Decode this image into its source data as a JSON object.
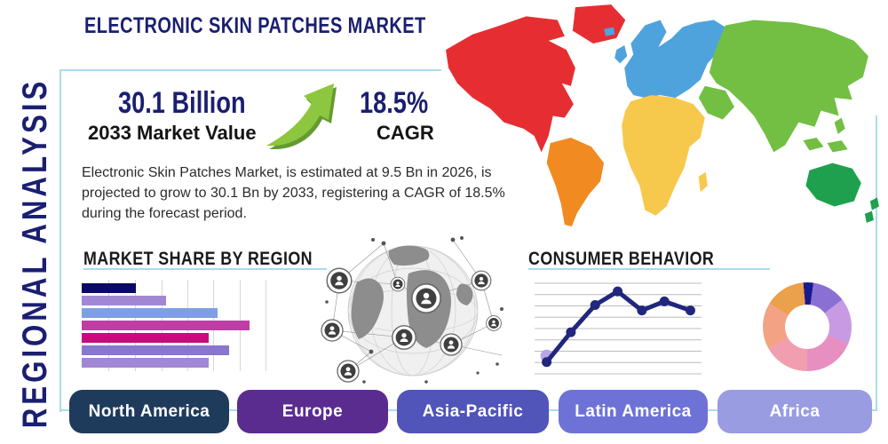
{
  "page": {
    "title": "ELECTRONIC SKIN PATCHES MARKET",
    "side_label": "REGIONAL ANALYSIS"
  },
  "stats": {
    "market_value": "30.1 Billion",
    "market_value_label": "2033 Market Value",
    "cagr_value": "18.5%",
    "cagr_label": "CAGR",
    "description": "Electronic Skin Patches Market, is estimated at 9.5 Bn in 2026, is projected to grow to 30.1 Bn by 2033, registering a CAGR of 18.5% during the forecast period."
  },
  "ui": {
    "panel_border_color": "#abdbee",
    "underline_color": "#a9d9ee",
    "navy": "#1a1f71",
    "arrow_green": "#8dc63f",
    "arrow_green_dark": "#649a31"
  },
  "world_map": {
    "north_america": "#e62e32",
    "south_america": "#f08a21",
    "europe": "#4fa3dd",
    "asia": "#72bf44",
    "africa": "#f6c84c",
    "australia": "#1fa04e"
  },
  "region_buttons": [
    {
      "label": "North America",
      "color": "#1f3b5c"
    },
    {
      "label": "Europe",
      "color": "#5b2c90"
    },
    {
      "label": "Asia-Pacific",
      "color": "#5154b8"
    },
    {
      "label": "Latin America",
      "color": "#6e72d6"
    },
    {
      "label": "Africa",
      "color": "#999ce1"
    }
  ],
  "chart_data": [
    {
      "type": "bar",
      "title": "MARKET SHARE BY REGION",
      "orientation": "horizontal",
      "note": "no axis labels visible; values estimated as % of plot width",
      "values_pct": [
        29,
        45,
        73,
        90,
        68,
        79,
        68
      ],
      "bar_colors": [
        "#0a0a66",
        "#a287d4",
        "#7e9fe3",
        "#bf3da5",
        "#c90a7c",
        "#8876cf",
        "#a287d4"
      ],
      "gridlines_pct": [
        14.3,
        28.6,
        42.9,
        56.7,
        70.5,
        84.8,
        98.6
      ],
      "grid": "vertical"
    },
    {
      "type": "line",
      "title": "CONSUMER BEHAVIOR",
      "note": "no axis labels visible; points estimated on 0-100 scale",
      "x_pct": [
        8,
        22,
        36,
        49,
        63,
        76,
        91
      ],
      "y_pct": [
        13,
        46,
        76,
        91,
        70,
        80,
        70
      ],
      "color": "#20277d",
      "start_marker_color": "#b7a6e3",
      "gridline_count": 9,
      "grid": "horizontal"
    },
    {
      "type": "pie",
      "donut": true,
      "note": "no labels visible; slice angles estimated in degrees clockwise from top",
      "start_deg": -5,
      "segments": [
        {
          "angle_deg": 13,
          "color": "#1a1a8f"
        },
        {
          "angle_deg": 44,
          "color": "#8a70d2"
        },
        {
          "angle_deg": 60,
          "color": "#c99ae4"
        },
        {
          "angle_deg": 68,
          "color": "#e78fc0"
        },
        {
          "angle_deg": 60,
          "color": "#f19fb0"
        },
        {
          "angle_deg": 62,
          "color": "#f3a384"
        },
        {
          "angle_deg": 53,
          "color": "#eba04c"
        }
      ]
    }
  ]
}
